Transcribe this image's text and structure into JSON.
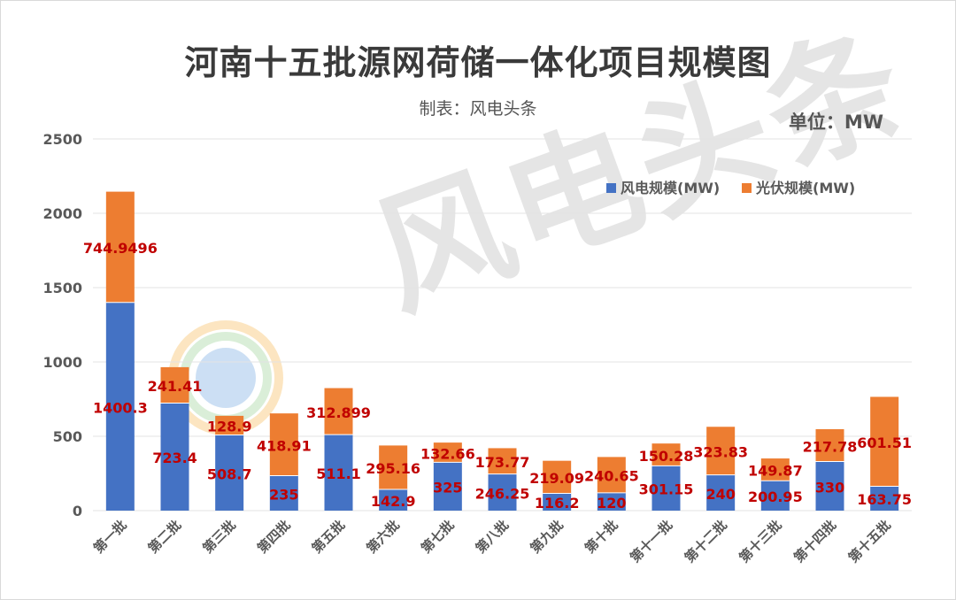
{
  "title": "河南十五批源网荷储一体化项目规模图",
  "subtitle": "制表：风电头条",
  "unit": "单位：MW",
  "watermark": "风电头条",
  "colors": {
    "wind": "#4472C4",
    "solar": "#ED7D31",
    "label": "#C00000",
    "grid": "#e3e3e3",
    "axis_text": "#595959"
  },
  "chart_data": {
    "type": "bar",
    "stacked": true,
    "categories": [
      "第一批",
      "第二批",
      "第三批",
      "第四批",
      "第五批",
      "第六批",
      "第七批",
      "第八批",
      "第九批",
      "第十批",
      "第十一批",
      "第十二批",
      "第十三批",
      "第十四批",
      "第十五批"
    ],
    "series": [
      {
        "name": "风电规模(MW)",
        "color": "#4472C4",
        "values": [
          1400.3,
          723.4,
          508.7,
          235,
          511.1,
          142.9,
          325,
          246.25,
          116.2,
          120,
          301.15,
          240,
          200.95,
          330,
          163.75
        ],
        "labels": [
          "1400.3",
          "723.4",
          "508.7",
          "235",
          "511.1",
          "142.9",
          "325",
          "246.25",
          "116.2",
          "120",
          "301.15",
          "240",
          "200.95",
          "330",
          "163.75"
        ]
      },
      {
        "name": "光伏规模(MW)",
        "color": "#ED7D31",
        "values": [
          744.9496,
          241.41,
          128.9,
          418.91,
          312.899,
          295.16,
          132.66,
          173.77,
          219.09,
          240.65,
          150.28,
          323.83,
          149.87,
          217.78,
          601.51
        ],
        "labels": [
          "744.9496",
          "241.41",
          "128.9",
          "418.91",
          "312.899",
          "295.16",
          "132.66",
          "173.77",
          "219.09",
          "240.65",
          "150.28",
          "323.83",
          "149.87",
          "217.78",
          "601.51"
        ]
      }
    ],
    "ylim": [
      0,
      2500
    ],
    "yticks": [
      "0",
      "500",
      "1000",
      "1500",
      "2000",
      "2500"
    ],
    "grid": true,
    "legend": "top-right"
  }
}
